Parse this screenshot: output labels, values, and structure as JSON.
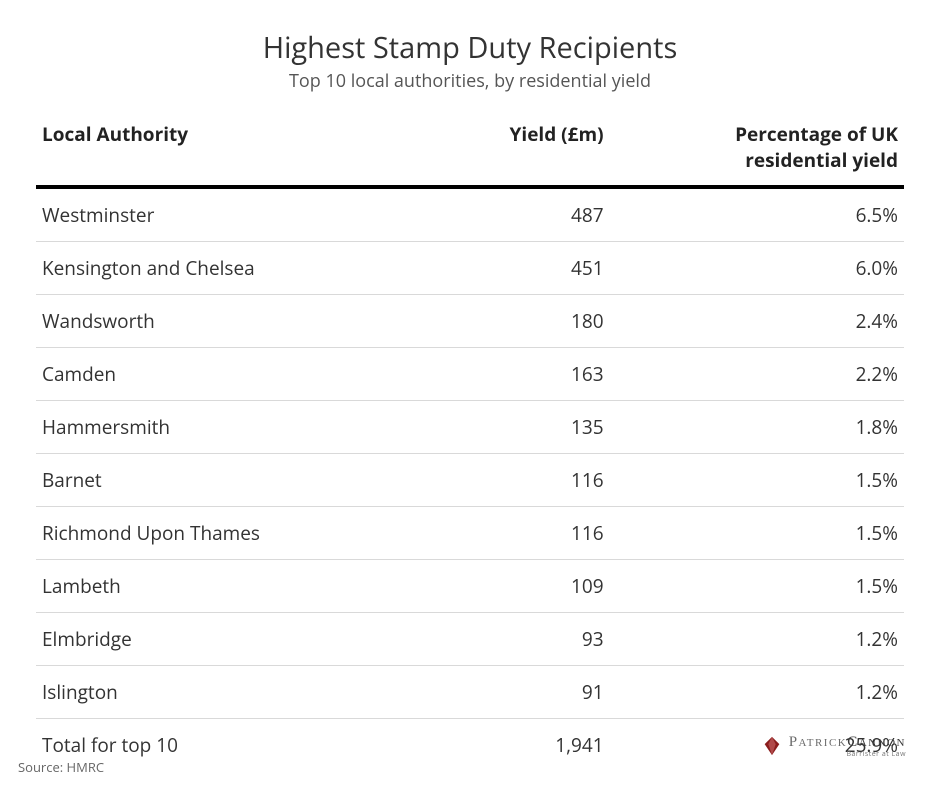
{
  "title": "Highest Stamp Duty Recipients",
  "subtitle": "Top 10 local authorities, by residential yield",
  "headers": {
    "local": "Local Authority",
    "yield": "Yield (£m)",
    "pct": "Percentage of UK residential yield"
  },
  "rows": [
    {
      "local": "Westminster",
      "yield": "487",
      "pct": "6.5%"
    },
    {
      "local": "Kensington and Chelsea",
      "yield": "451",
      "pct": "6.0%"
    },
    {
      "local": "Wandsworth",
      "yield": "180",
      "pct": "2.4%"
    },
    {
      "local": "Camden",
      "yield": "163",
      "pct": "2.2%"
    },
    {
      "local": "Hammersmith",
      "yield": "135",
      "pct": "1.8%"
    },
    {
      "local": "Barnet",
      "yield": "116",
      "pct": "1.5%"
    },
    {
      "local": "Richmond Upon Thames",
      "yield": "116",
      "pct": "1.5%"
    },
    {
      "local": "Lambeth",
      "yield": "109",
      "pct": "1.5%"
    },
    {
      "local": "Elmbridge",
      "yield": "93",
      "pct": "1.2%"
    },
    {
      "local": "Islington",
      "yield": "91",
      "pct": "1.2%"
    }
  ],
  "total": {
    "local": "Total for top 10",
    "yield": "1,941",
    "pct": "25.9%"
  },
  "source": "Source: HMRC",
  "logo": {
    "first": "Patrick",
    "last": "Cannon",
    "tag": "Barrister at Law",
    "mark_color": "#8a1d1d"
  },
  "style": {
    "background_color": "#ffffff",
    "title_fontsize": 29,
    "subtitle_fontsize": 18,
    "header_fontsize": 19,
    "cell_fontsize": 19,
    "header_rule_color": "#000000",
    "row_rule_color": "#d9d9d9",
    "text_color": "#333333",
    "col_widths_pct": [
      50,
      20,
      30
    ]
  }
}
